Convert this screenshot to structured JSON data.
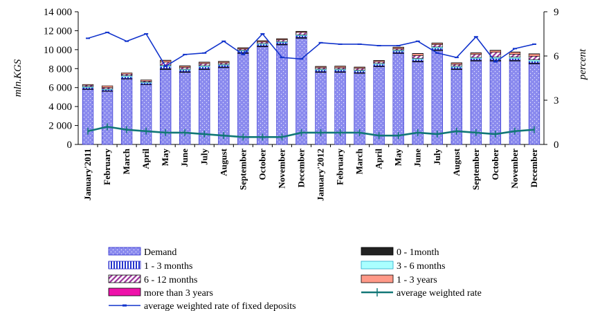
{
  "chart_data": {
    "type": "bar",
    "stacked": true,
    "categories": [
      "January'2011",
      "February",
      "March",
      "April",
      "May",
      "June",
      "July",
      "August",
      "September",
      "October",
      "November",
      "December",
      "January'2012",
      "February",
      "March",
      "April",
      "May",
      "June",
      "July",
      "August",
      "September",
      "October",
      "November",
      "December"
    ],
    "ylabel": "mln.KGS",
    "ylabel_right": "percent",
    "ylim": [
      0,
      14000
    ],
    "y_ticks": [
      "0",
      "2 000",
      "4 000",
      "6 000",
      "8 000",
      "10 000",
      "12 000",
      "14 000"
    ],
    "ylim_right": [
      0,
      9
    ],
    "y_right_ticks": [
      "0",
      "3",
      "6",
      "9"
    ],
    "legend_position": "bottom",
    "series": [
      {
        "name": "Demand",
        "color": "#8888ee",
        "values": [
          5800,
          5600,
          6900,
          6300,
          7900,
          7600,
          7900,
          8100,
          9600,
          10300,
          10500,
          11200,
          7600,
          7600,
          7500,
          8200,
          9600,
          8700,
          9900,
          7900,
          8800,
          8800,
          8800,
          8500
        ]
      },
      {
        "name": "0 - 1month",
        "color": "#222222",
        "values": [
          80,
          80,
          80,
          60,
          120,
          100,
          100,
          100,
          110,
          110,
          110,
          120,
          100,
          100,
          100,
          100,
          100,
          110,
          110,
          100,
          110,
          110,
          110,
          110
        ]
      },
      {
        "name": "1 - 3 months",
        "color": "#3344dd",
        "values": [
          120,
          100,
          150,
          120,
          200,
          150,
          180,
          150,
          150,
          150,
          150,
          150,
          150,
          150,
          150,
          150,
          150,
          150,
          150,
          150,
          150,
          160,
          160,
          160
        ]
      },
      {
        "name": "3 - 6 months",
        "color": "#aaffff",
        "values": [
          100,
          80,
          130,
          90,
          120,
          100,
          130,
          100,
          80,
          100,
          100,
          100,
          100,
          100,
          80,
          100,
          100,
          120,
          130,
          100,
          120,
          150,
          150,
          170
        ]
      },
      {
        "name": "6 - 12 months",
        "color": "#aa77cc",
        "values": [
          150,
          150,
          160,
          120,
          350,
          180,
          220,
          160,
          140,
          160,
          180,
          250,
          150,
          150,
          200,
          180,
          150,
          300,
          250,
          200,
          320,
          500,
          300,
          370
        ]
      },
      {
        "name": "1 - 3 years",
        "color": "#ff9988",
        "values": [
          80,
          180,
          130,
          120,
          180,
          150,
          140,
          140,
          110,
          110,
          100,
          100,
          120,
          150,
          120,
          120,
          150,
          200,
          150,
          150,
          150,
          200,
          220,
          240
        ]
      },
      {
        "name": "more than 3 years",
        "color": "#ee11aa",
        "values": [
          0,
          0,
          0,
          0,
          20,
          20,
          20,
          20,
          20,
          20,
          20,
          20,
          20,
          20,
          20,
          20,
          20,
          20,
          20,
          20,
          20,
          20,
          20,
          20
        ]
      }
    ],
    "line_series": [
      {
        "name": "average weighted rate of fixed deposits",
        "color": "#1133cc",
        "axis": "right",
        "values": [
          7.2,
          7.6,
          7.0,
          7.5,
          5.3,
          6.1,
          6.2,
          7.0,
          6.1,
          7.5,
          5.9,
          5.8,
          6.9,
          6.8,
          6.8,
          6.7,
          6.7,
          7.0,
          6.2,
          5.9,
          7.3,
          5.6,
          6.5,
          6.8
        ]
      },
      {
        "name": "average weighted rate",
        "color": "#117777",
        "axis": "right",
        "values": [
          0.9,
          1.2,
          1.0,
          0.9,
          0.8,
          0.8,
          0.7,
          0.6,
          0.5,
          0.5,
          0.5,
          0.8,
          0.8,
          0.8,
          0.8,
          0.6,
          0.6,
          0.8,
          0.7,
          0.9,
          0.8,
          0.7,
          0.9,
          1.0
        ]
      }
    ]
  }
}
